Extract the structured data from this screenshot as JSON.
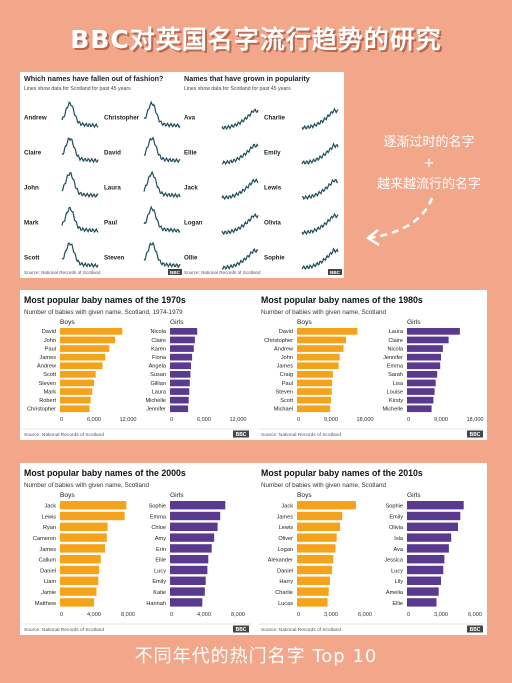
{
  "page_title": "BBC对英国名字流行趋势的研究",
  "annotation": {
    "line1": "逐渐过时的名字",
    "line2": "+",
    "line3": "越来越流行的名字"
  },
  "footer": "不同年代的热门名字 Top 10",
  "colors": {
    "background": "#f2a68a",
    "boys": "#f5a31a",
    "girls": "#5a3a8f",
    "trend_line": "#1e4f5c"
  },
  "trend_panel": {
    "left_title": "Which names have fallen out of fashion?",
    "left_subtitle": "Lines show data for Scotland for past 45 years",
    "right_title": "Names that have grown in popularity",
    "right_subtitle": "Lines show data for Scotland for past 45 years",
    "source_left": "Source: National Records of Scotland",
    "source_right": "Source: National Records of Scotland",
    "logo": "BBC",
    "fallen": [
      "Andrew",
      "Christopher",
      "Claire",
      "David",
      "John",
      "Laura",
      "Mark",
      "Paul",
      "Scott",
      "Steven"
    ],
    "grown": [
      "Ava",
      "Charlie",
      "Ellie",
      "Emily",
      "Jack",
      "Lewis",
      "Logan",
      "Olivia",
      "Ollie",
      "Sophie"
    ]
  },
  "chart_data": [
    {
      "type": "bar",
      "title": "Most popular baby names of the 1970s",
      "subtitle": "Number of babies with given name, Scotland, 1974-1979",
      "source": "Source: National Records of Scotland",
      "logo": "BBC",
      "series": [
        {
          "name": "Boys",
          "categories": [
            "David",
            "John",
            "Paul",
            "James",
            "Andrew",
            "Scott",
            "Steven",
            "Mark",
            "Robert",
            "Christopher"
          ],
          "values": [
            11000,
            9700,
            8700,
            8000,
            7500,
            6300,
            6000,
            5700,
            5400,
            5200
          ]
        },
        {
          "name": "Girls",
          "categories": [
            "Nicola",
            "Claire",
            "Karen",
            "Fiona",
            "Angela",
            "Susan",
            "Gillian",
            "Laura",
            "Michelle",
            "Jennifer"
          ],
          "values": [
            4800,
            4400,
            4200,
            3900,
            3700,
            3600,
            3500,
            3400,
            3300,
            3200
          ]
        }
      ],
      "xlim": [
        0,
        12000
      ],
      "xticks": [
        "0",
        "6,000",
        "12,000"
      ]
    },
    {
      "type": "bar",
      "title": "Most popular baby names of the 1980s",
      "subtitle": "Number of babies with given name, Scotland",
      "source": "Source: National Records of Scotland",
      "logo": "BBC",
      "series": [
        {
          "name": "Boys",
          "categories": [
            "David",
            "Christopher",
            "Andrew",
            "John",
            "James",
            "Craig",
            "Paul",
            "Steven",
            "Scott",
            "Michael"
          ],
          "values": [
            16000,
            13000,
            12300,
            11300,
            11000,
            9500,
            9300,
            9200,
            9000,
            8800
          ]
        },
        {
          "name": "Girls",
          "categories": [
            "Laura",
            "Claire",
            "Nicola",
            "Jennifer",
            "Emma",
            "Sarah",
            "Lisa",
            "Louise",
            "Kirsty",
            "Michelle"
          ],
          "values": [
            14000,
            11000,
            9500,
            9000,
            8800,
            8000,
            7600,
            7300,
            7000,
            6500
          ]
        }
      ],
      "xlim": [
        0,
        18000
      ],
      "xticks": [
        "0",
        "9,000",
        "18,000"
      ]
    },
    {
      "type": "bar",
      "title": "Most popular baby names of the 2000s",
      "subtitle": "Number of babies with given name, Scotland",
      "source": "Source: National Records of Scotland",
      "logo": "BBC",
      "series": [
        {
          "name": "Boys",
          "categories": [
            "Jack",
            "Lewis",
            "Ryan",
            "Cameron",
            "James",
            "Callum",
            "Daniel",
            "Liam",
            "Jamie",
            "Matthew"
          ],
          "values": [
            7800,
            7600,
            5600,
            5500,
            5300,
            4800,
            4600,
            4500,
            4300,
            4000
          ]
        },
        {
          "name": "Girls",
          "categories": [
            "Sophie",
            "Emma",
            "Chloe",
            "Amy",
            "Erin",
            "Ellie",
            "Lucy",
            "Emily",
            "Katie",
            "Hannah"
          ],
          "values": [
            6500,
            5900,
            5600,
            5200,
            4900,
            4500,
            4400,
            4200,
            4100,
            3800
          ]
        }
      ],
      "xlim": [
        0,
        8000
      ],
      "xticks": [
        "0",
        "4,000",
        "8,000"
      ]
    },
    {
      "type": "bar",
      "title": "Most popular baby names of the 2010s",
      "subtitle": "Number of babies with given name, Scotland",
      "source": "Source: National Records of Scotland",
      "logo": "BBC",
      "series": [
        {
          "name": "Boys",
          "categories": [
            "Jack",
            "James",
            "Lewis",
            "Oliver",
            "Logan",
            "Alexander",
            "Daniel",
            "Harry",
            "Charlie",
            "Lucas"
          ],
          "values": [
            5200,
            4000,
            3800,
            3500,
            3400,
            3200,
            3100,
            2900,
            2800,
            2700
          ]
        },
        {
          "name": "Girls",
          "categories": [
            "Sophie",
            "Emily",
            "Olivia",
            "Isla",
            "Ava",
            "Jessica",
            "Lucy",
            "Lily",
            "Amelia",
            "Ellie"
          ],
          "values": [
            5000,
            4700,
            4500,
            3900,
            3700,
            3300,
            3200,
            3000,
            2800,
            2600
          ]
        }
      ],
      "xlim": [
        0,
        6000
      ],
      "xticks": [
        "0",
        "3,000",
        "6,000"
      ]
    }
  ]
}
